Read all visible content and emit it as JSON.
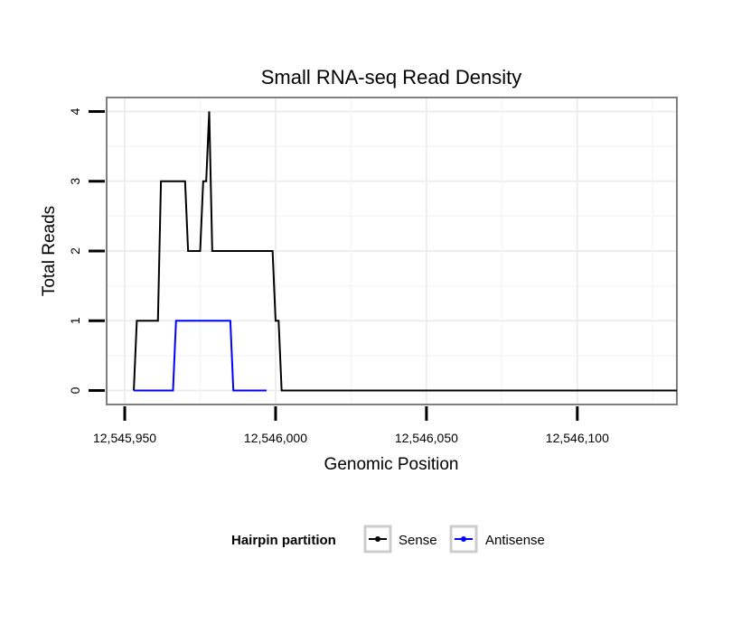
{
  "chart_data": {
    "type": "line",
    "title": "Small RNA-seq Read Density",
    "xlabel": "Genomic Position",
    "ylabel": "Total Reads",
    "xlim": [
      12545944,
      12546133
    ],
    "ylim": [
      -0.2,
      4.2
    ],
    "x_ticks": [
      12545950,
      12546000,
      12546050,
      12546100
    ],
    "x_tick_labels": [
      "12,545,950",
      "12,546,000",
      "12,546,050",
      "12,546,100"
    ],
    "y_ticks": [
      0,
      1,
      2,
      3,
      4
    ],
    "y_tick_labels": [
      "0",
      "1",
      "2",
      "3",
      "4"
    ],
    "grid": true,
    "legend": {
      "title": "Hairpin partition",
      "position": "bottom"
    },
    "series": [
      {
        "name": "Sense",
        "color": "#000000",
        "x": [
          12545953,
          12545954,
          12545961,
          12545962,
          12545970,
          12545971,
          12545975,
          12545976,
          12545977,
          12545978,
          12545979,
          12545980,
          12545981,
          12545999,
          12546000,
          12546001,
          12546002,
          12546003,
          12546133
        ],
        "y": [
          0,
          1,
          1,
          3,
          3,
          2,
          2,
          3,
          3,
          4,
          2,
          2,
          2,
          2,
          1,
          1,
          0,
          0,
          0
        ]
      },
      {
        "name": "Antisense",
        "color": "#0000ff",
        "x": [
          12545953,
          12545966,
          12545967,
          12545974,
          12545985,
          12545986,
          12545997
        ],
        "y": [
          0,
          0,
          1,
          1,
          1,
          0,
          0
        ]
      }
    ]
  }
}
